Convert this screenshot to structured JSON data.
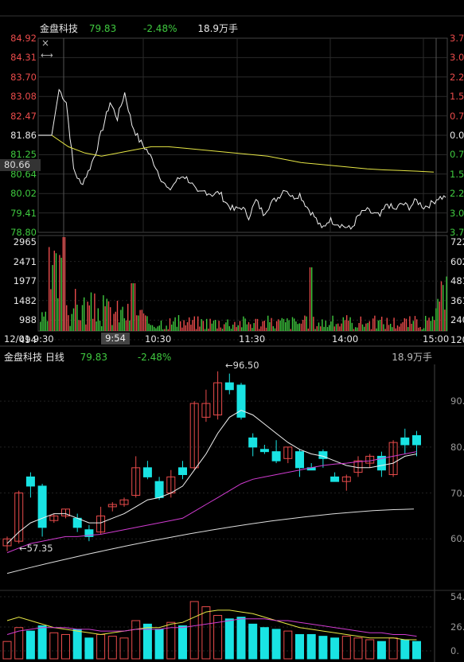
{
  "colors": {
    "up": "#e94b4b",
    "down": "#3fc93f",
    "ma_yellow": "#e6e645",
    "ma_magenta": "#d03bd0",
    "candle_down": "#19e3e3"
  },
  "intraday_header": {
    "name": "金盘科技",
    "price": "79.83",
    "change_pct": "-2.48%",
    "volume": "18.9万手"
  },
  "intraday": {
    "price_left_ticks": [
      "84.92",
      "84.31",
      "83.70",
      "83.08",
      "82.47",
      "81.86",
      "81.25",
      "80.64",
      "80.02",
      "79.41",
      "78.80"
    ],
    "price_right_ticks": [
      "3.7",
      "3.0",
      "2.2",
      "1.5",
      "0.7",
      "0.0",
      "0.7",
      "1.5",
      "2.2",
      "3.0",
      "3.7"
    ],
    "current_price_tag": "80.66",
    "volume_left_ticks": [
      "2965",
      "2471",
      "1977",
      "1482",
      "988",
      "494"
    ],
    "volume_right_ticks": [
      "722",
      "602",
      "481",
      "361",
      "240",
      "120"
    ],
    "time_labels": [
      "12/01 9:30",
      "10:30",
      "11:30",
      "14:00",
      "15:00"
    ],
    "cursor_time": "9:54",
    "chart_data": {
      "type": "line",
      "prev_close": 81.86,
      "ylim": [
        78.8,
        84.92
      ],
      "price": [
        81.86,
        83.3,
        82.9,
        80.8,
        80.3,
        80.7,
        81.3,
        82.1,
        82.9,
        82.4,
        83.2,
        82.2,
        81.7,
        81.4,
        81.0,
        80.5,
        80.1,
        80.4,
        80.6,
        80.4,
        80.0,
        80.1,
        80.0,
        80.05,
        79.7,
        79.5,
        79.6,
        79.3,
        79.8,
        79.4,
        79.7,
        79.9,
        80.2,
        79.9,
        80.0,
        79.6,
        79.3,
        78.9,
        79.2,
        79.1,
        79.0,
        78.9,
        79.3,
        79.5,
        79.4,
        79.3,
        79.7,
        79.5,
        79.7,
        79.6,
        79.8,
        79.6,
        79.7,
        79.9,
        79.9
      ],
      "avg": [
        81.86,
        81.5,
        81.3,
        81.2,
        81.3,
        81.4,
        81.5,
        81.5,
        81.45,
        81.4,
        81.35,
        81.3,
        81.25,
        81.2,
        81.1,
        81.0,
        80.95,
        80.9,
        80.85,
        80.8,
        80.77,
        80.75,
        80.73,
        80.7
      ]
    }
  },
  "daily_header": {
    "name": "金盘科技 日线",
    "price": "79.83",
    "change_pct": "-2.48%",
    "volume": "18.9万手"
  },
  "daily": {
    "price_ticks": [
      "90.",
      "80.",
      "70.",
      "60."
    ],
    "high_label": "96.50",
    "low_label": "57.35",
    "volume_ticks": [
      "54.",
      "26.",
      "0."
    ],
    "chart_data": {
      "type": "candlestick",
      "ylim": [
        50,
        98
      ],
      "candles": [
        {
          "o": 58.5,
          "h": 60.5,
          "l": 57.35,
          "c": 60.0
        },
        {
          "o": 59.5,
          "h": 70.5,
          "l": 59.0,
          "c": 70.0
        },
        {
          "o": 73.5,
          "h": 74.5,
          "l": 69.0,
          "c": 71.5
        },
        {
          "o": 71.5,
          "h": 72.0,
          "l": 60.5,
          "c": 62.5
        },
        {
          "o": 64.0,
          "h": 65.5,
          "l": 63.5,
          "c": 65.0
        },
        {
          "o": 65.0,
          "h": 66.5,
          "l": 64.5,
          "c": 66.5
        },
        {
          "o": 64.5,
          "h": 65.5,
          "l": 61.5,
          "c": 62.5
        },
        {
          "o": 62.0,
          "h": 63.0,
          "l": 59.5,
          "c": 60.5
        },
        {
          "o": 61.5,
          "h": 67.0,
          "l": 61.0,
          "c": 65.0
        },
        {
          "o": 67.0,
          "h": 68.0,
          "l": 66.0,
          "c": 67.5
        },
        {
          "o": 67.5,
          "h": 69.0,
          "l": 67.0,
          "c": 68.5
        },
        {
          "o": 69.5,
          "h": 78.0,
          "l": 69.0,
          "c": 75.5
        },
        {
          "o": 75.5,
          "h": 77.0,
          "l": 73.0,
          "c": 73.5
        },
        {
          "o": 72.5,
          "h": 73.5,
          "l": 68.5,
          "c": 69.0
        },
        {
          "o": 70.0,
          "h": 75.0,
          "l": 69.0,
          "c": 73.5
        },
        {
          "o": 75.5,
          "h": 77.0,
          "l": 73.0,
          "c": 74.0
        },
        {
          "o": 75.5,
          "h": 90.0,
          "l": 75.0,
          "c": 89.5
        },
        {
          "o": 86.5,
          "h": 92.5,
          "l": 85.5,
          "c": 89.5
        },
        {
          "o": 87.0,
          "h": 96.5,
          "l": 86.0,
          "c": 94.0
        },
        {
          "o": 94.0,
          "h": 96.0,
          "l": 91.5,
          "c": 92.5
        },
        {
          "o": 93.5,
          "h": 94.0,
          "l": 86.0,
          "c": 86.5
        },
        {
          "o": 82.0,
          "h": 83.0,
          "l": 78.0,
          "c": 80.0
        },
        {
          "o": 79.5,
          "h": 80.5,
          "l": 78.5,
          "c": 79.0
        },
        {
          "o": 79.0,
          "h": 81.5,
          "l": 76.5,
          "c": 77.0
        },
        {
          "o": 77.5,
          "h": 80.0,
          "l": 76.5,
          "c": 80.0
        },
        {
          "o": 79.0,
          "h": 79.5,
          "l": 73.5,
          "c": 75.5
        },
        {
          "o": 75.5,
          "h": 76.5,
          "l": 75.0,
          "c": 75.0
        },
        {
          "o": 79.0,
          "h": 79.5,
          "l": 75.5,
          "c": 77.5
        },
        {
          "o": 73.5,
          "h": 74.5,
          "l": 72.5,
          "c": 72.5
        },
        {
          "o": 72.5,
          "h": 74.0,
          "l": 70.5,
          "c": 73.5
        },
        {
          "o": 74.5,
          "h": 78.0,
          "l": 73.5,
          "c": 77.0
        },
        {
          "o": 76.5,
          "h": 78.5,
          "l": 75.5,
          "c": 78.0
        },
        {
          "o": 78.0,
          "h": 79.0,
          "l": 73.5,
          "c": 75.0
        },
        {
          "o": 74.0,
          "h": 81.5,
          "l": 73.5,
          "c": 81.0
        },
        {
          "o": 82.0,
          "h": 84.0,
          "l": 78.5,
          "c": 80.5
        },
        {
          "o": 82.5,
          "h": 83.5,
          "l": 78.0,
          "c": 80.5
        }
      ],
      "ma_white": [
        59.0,
        61.5,
        63.5,
        64.5,
        65.5,
        65.5,
        64.5,
        63.5,
        63.5,
        64.5,
        65.5,
        67.0,
        68.5,
        69.0,
        70.0,
        71.5,
        75.0,
        78.5,
        83.0,
        86.5,
        88.0,
        87.0,
        85.0,
        83.0,
        81.0,
        79.5,
        78.5,
        78.0,
        77.0,
        76.0,
        75.5,
        75.5,
        76.0,
        76.5,
        78.0,
        78.5
      ],
      "ma_magenta": [
        57.0,
        58.0,
        59.0,
        59.5,
        60.0,
        60.5,
        60.5,
        60.8,
        61.0,
        61.5,
        62.0,
        62.5,
        63.0,
        63.5,
        64.0,
        64.5,
        66.0,
        67.5,
        69.0,
        70.5,
        72.0,
        73.0,
        73.5,
        74.0,
        74.5,
        75.0,
        75.5,
        76.0,
        76.3,
        76.5,
        76.8,
        77.0,
        77.5,
        78.0,
        78.5,
        79.0
      ],
      "ma_gray_start": 52.5,
      "ma_gray_end": 66.5,
      "volume_max": 54
    }
  }
}
